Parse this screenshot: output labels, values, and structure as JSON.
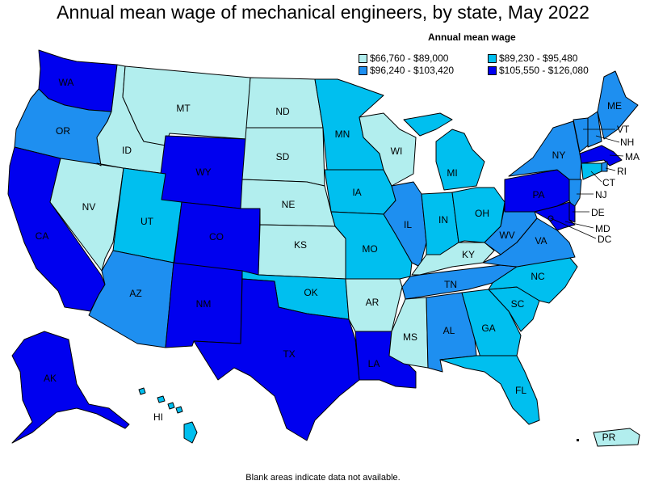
{
  "title": "Annual mean wage of mechanical engineers, by state, May 2022",
  "legend": {
    "title": "Annual mean wage",
    "items": [
      {
        "label": "$66,760 - $89,000",
        "color": "#b2eeee"
      },
      {
        "label": "$89,230 - $95,480",
        "color": "#00bfef"
      },
      {
        "label": "$96,240 - $103,420",
        "color": "#1e8ff0"
      },
      {
        "label": "$105,550 - $126,080",
        "color": "#0000ef"
      }
    ]
  },
  "footnote": "Blank areas indicate data not available.",
  "states": {
    "WA": {
      "label": "WA",
      "tier": 3
    },
    "OR": {
      "label": "OR",
      "tier": 2
    },
    "CA": {
      "label": "CA",
      "tier": 3
    },
    "NV": {
      "label": "NV",
      "tier": 0
    },
    "ID": {
      "label": "ID",
      "tier": 0
    },
    "MT": {
      "label": "MT",
      "tier": 0
    },
    "WY": {
      "label": "WY",
      "tier": 3
    },
    "UT": {
      "label": "UT",
      "tier": 1
    },
    "CO": {
      "label": "CO",
      "tier": 3
    },
    "AZ": {
      "label": "AZ",
      "tier": 2
    },
    "NM": {
      "label": "NM",
      "tier": 3
    },
    "ND": {
      "label": "ND",
      "tier": 0
    },
    "SD": {
      "label": "SD",
      "tier": 0
    },
    "NE": {
      "label": "NE",
      "tier": 0
    },
    "KS": {
      "label": "KS",
      "tier": 0
    },
    "OK": {
      "label": "OK",
      "tier": 1
    },
    "TX": {
      "label": "TX",
      "tier": 3
    },
    "MN": {
      "label": "MN",
      "tier": 1
    },
    "IA": {
      "label": "IA",
      "tier": 1
    },
    "MO": {
      "label": "MO",
      "tier": 1
    },
    "AR": {
      "label": "AR",
      "tier": 0
    },
    "LA": {
      "label": "LA",
      "tier": 3
    },
    "WI": {
      "label": "WI",
      "tier": 0
    },
    "IL": {
      "label": "IL",
      "tier": 2
    },
    "MI": {
      "label": "MI",
      "tier": 1
    },
    "IN": {
      "label": "IN",
      "tier": 1
    },
    "OH": {
      "label": "OH",
      "tier": 1
    },
    "KY": {
      "label": "KY",
      "tier": 0
    },
    "TN": {
      "label": "TN",
      "tier": 2
    },
    "MS": {
      "label": "MS",
      "tier": 0
    },
    "AL": {
      "label": "AL",
      "tier": 2
    },
    "GA": {
      "label": "GA",
      "tier": 1
    },
    "FL": {
      "label": "FL",
      "tier": 1
    },
    "SC": {
      "label": "SC",
      "tier": 1
    },
    "NC": {
      "label": "NC",
      "tier": 1
    },
    "VA": {
      "label": "VA",
      "tier": 2
    },
    "WV": {
      "label": "WV",
      "tier": 2
    },
    "PA": {
      "label": "PA",
      "tier": 3
    },
    "NY": {
      "label": "NY",
      "tier": 2
    },
    "ME": {
      "label": "ME",
      "tier": 2
    },
    "VT": {
      "label": "VT",
      "tier": 2
    },
    "NH": {
      "label": "NH",
      "tier": 2
    },
    "MA": {
      "label": "MA",
      "tier": 3
    },
    "RI": {
      "label": "RI",
      "tier": 2
    },
    "CT": {
      "label": "CT",
      "tier": 1
    },
    "NJ": {
      "label": "NJ",
      "tier": 2
    },
    "DE": {
      "label": "DE",
      "tier": 3
    },
    "MD": {
      "label": "MD",
      "tier": 3
    },
    "DC": {
      "label": "DC",
      "tier": 3
    },
    "AK": {
      "label": "AK",
      "tier": 3
    },
    "HI": {
      "label": "HI",
      "tier": 1
    },
    "PR": {
      "label": "PR",
      "tier": 0
    }
  }
}
